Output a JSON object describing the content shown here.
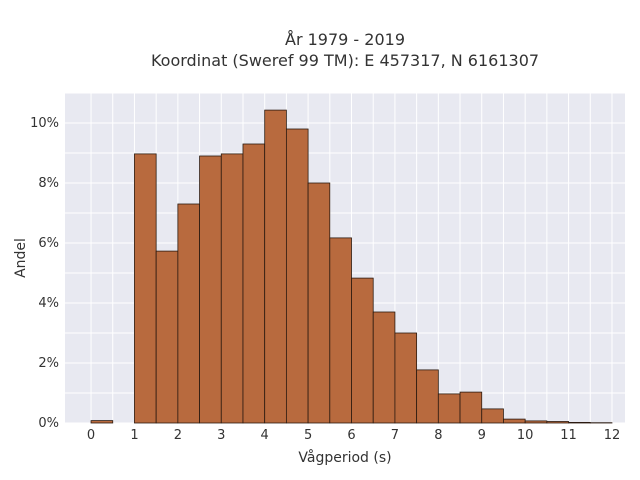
{
  "chart_data": {
    "type": "bar",
    "title": "År 1979 - 2019",
    "subtitle": "Koordinat (Sweref 99 TM): E 457317, N 6161307",
    "xlabel": "Vågperiod (s)",
    "ylabel": "Andel",
    "xlim": [
      -0.6,
      12.3
    ],
    "ylim": [
      0,
      11
    ],
    "x_ticks": [
      0,
      1,
      2,
      3,
      4,
      5,
      6,
      7,
      8,
      9,
      10,
      11,
      12
    ],
    "x_tick_labels": [
      "0",
      "1",
      "2",
      "3",
      "4",
      "5",
      "6",
      "7",
      "8",
      "9",
      "10",
      "11",
      "12"
    ],
    "y_ticks": [
      0,
      2,
      4,
      6,
      8,
      10
    ],
    "y_tick_labels": [
      "0%",
      "2%",
      "4%",
      "6%",
      "8%",
      "10%"
    ],
    "bin_width": 0.5,
    "bins": [
      {
        "start": 0.0,
        "value": 0.08
      },
      {
        "start": 0.5,
        "value": 0.0
      },
      {
        "start": 1.0,
        "value": 8.97
      },
      {
        "start": 1.5,
        "value": 5.73
      },
      {
        "start": 2.0,
        "value": 7.3
      },
      {
        "start": 2.5,
        "value": 8.9
      },
      {
        "start": 3.0,
        "value": 8.97
      },
      {
        "start": 3.5,
        "value": 9.3
      },
      {
        "start": 4.0,
        "value": 10.43
      },
      {
        "start": 4.5,
        "value": 9.8
      },
      {
        "start": 5.0,
        "value": 8.0
      },
      {
        "start": 5.5,
        "value": 6.17
      },
      {
        "start": 6.0,
        "value": 4.83
      },
      {
        "start": 6.5,
        "value": 3.7
      },
      {
        "start": 7.0,
        "value": 3.0
      },
      {
        "start": 7.5,
        "value": 1.77
      },
      {
        "start": 8.0,
        "value": 0.97
      },
      {
        "start": 8.5,
        "value": 1.03
      },
      {
        "start": 9.0,
        "value": 0.47
      },
      {
        "start": 9.5,
        "value": 0.13
      },
      {
        "start": 10.0,
        "value": 0.07
      },
      {
        "start": 10.5,
        "value": 0.05
      },
      {
        "start": 11.0,
        "value": 0.02
      },
      {
        "start": 11.5,
        "value": 0.01
      }
    ],
    "grid": true,
    "colors": {
      "bar_fill": "#b86a3e",
      "bar_stroke": "#2b1a10",
      "plot_background": "#e8e9f1",
      "grid": "#ffffff"
    }
  }
}
